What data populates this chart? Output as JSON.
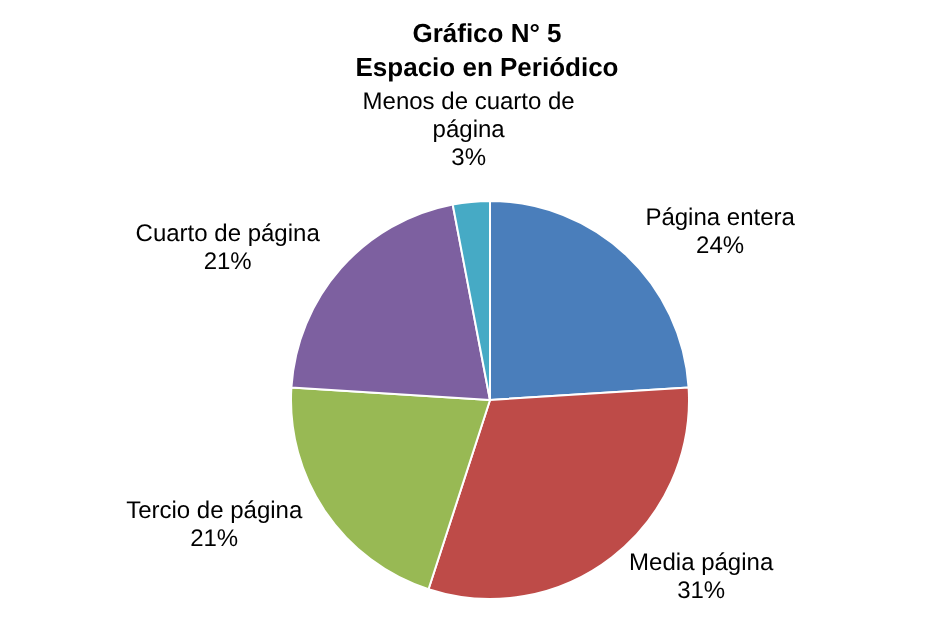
{
  "chart_data": {
    "type": "pie",
    "title": "Gráfico N° 5",
    "subtitle": "Espacio en Periódico",
    "categories": [
      "Página entera",
      "Media página",
      "Tercio de página",
      "Cuarto de página",
      "Menos de cuarto de página"
    ],
    "values": [
      24,
      31,
      21,
      21,
      3
    ],
    "colors": [
      "#4a7ebb",
      "#be4b48",
      "#98b954",
      "#7d60a0",
      "#46aac5"
    ],
    "value_labels": [
      "24%",
      "31%",
      "21%",
      "21%",
      "3%"
    ],
    "legend": false
  }
}
